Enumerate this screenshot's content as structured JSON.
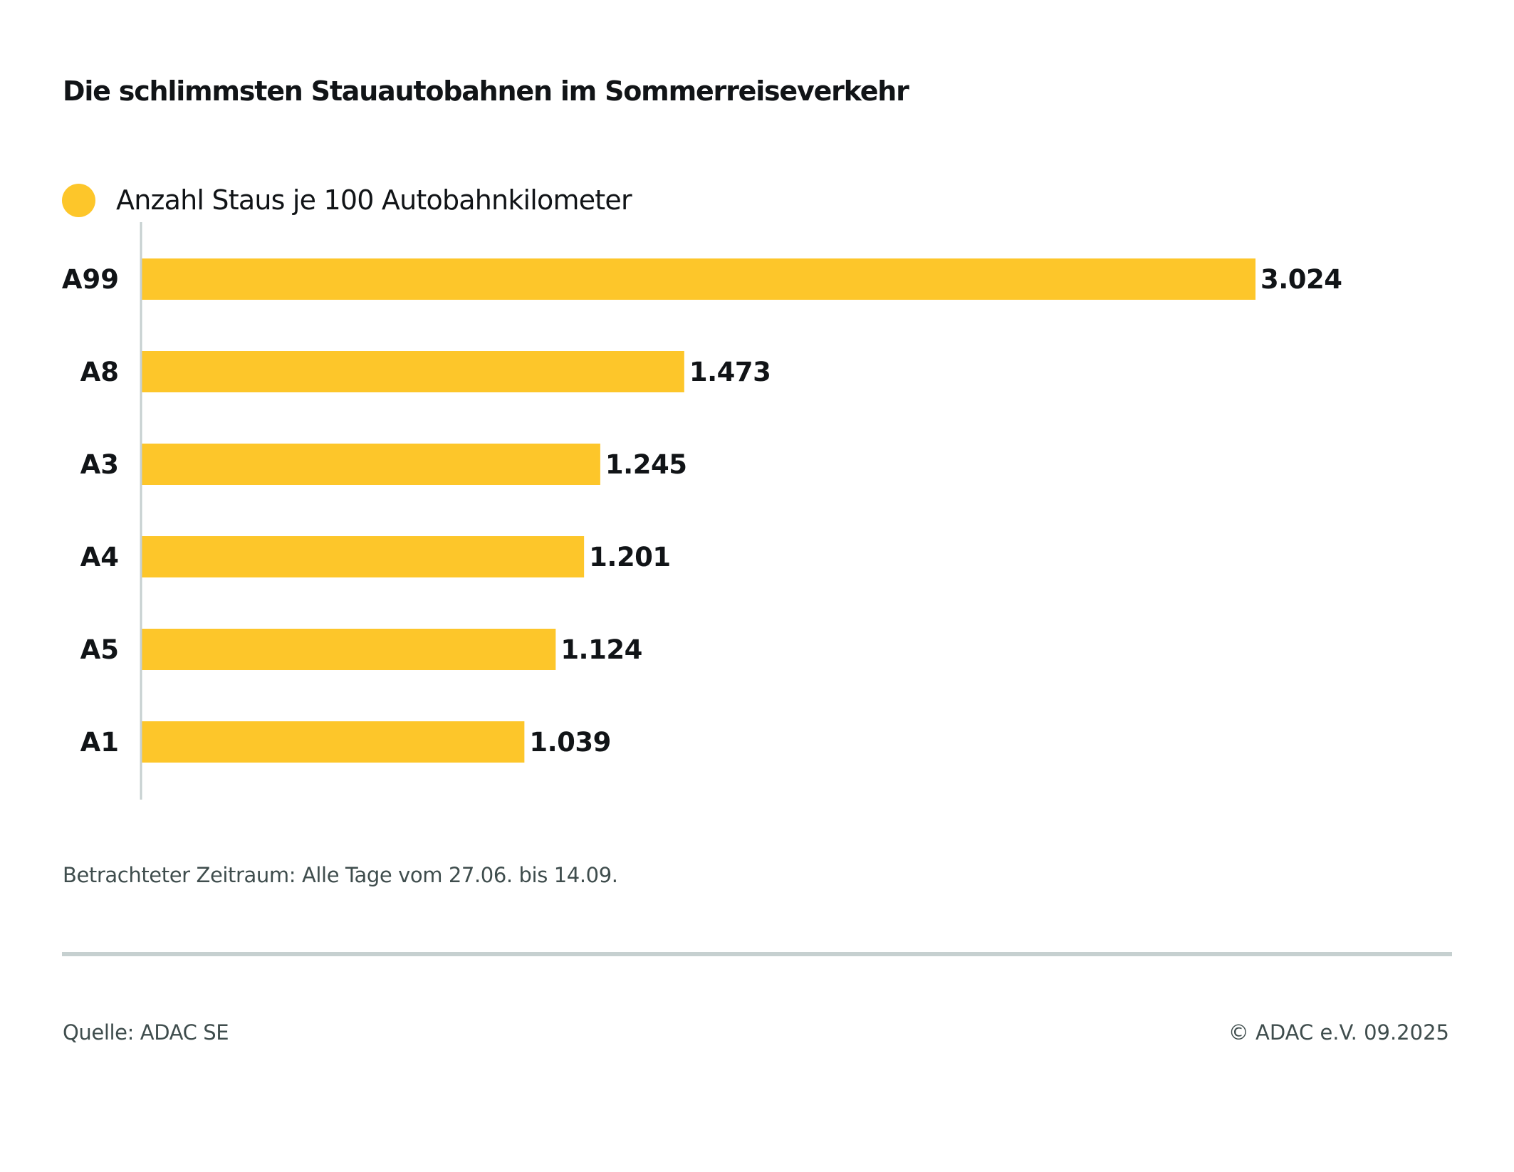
{
  "colors": {
    "bar": "#fdc62a",
    "axis": "#c6d0d0",
    "text": "#111417",
    "muted_text": "#3f4d4d"
  },
  "chart_data": {
    "type": "bar",
    "orientation": "horizontal",
    "title": "Die schlimmsten Stauautobahnen im Sommerreiseverkehr",
    "categories": [
      "A99",
      "A8",
      "A3",
      "A4",
      "A5",
      "A1"
    ],
    "series": [
      {
        "name": "Anzahl Staus je 100 Autobahnkilometer",
        "values": [
          3024,
          1473,
          1245,
          1201,
          1124,
          1039
        ],
        "value_labels": [
          "3.024",
          "1.473",
          "1.245",
          "1.201",
          "1.124",
          "1.039"
        ]
      }
    ],
    "xlabel": "",
    "ylabel": "",
    "xlim": [
      0,
      3024
    ],
    "grid": false,
    "legend_position": "top-left",
    "data_labels": "end-of-bar"
  },
  "footnote": "Betrachteter Zeitraum: Alle Tage vom 27.06. bis 14.09.",
  "source": "Quelle: ADAC SE",
  "copyright": "© ADAC e.V. 09.2025"
}
